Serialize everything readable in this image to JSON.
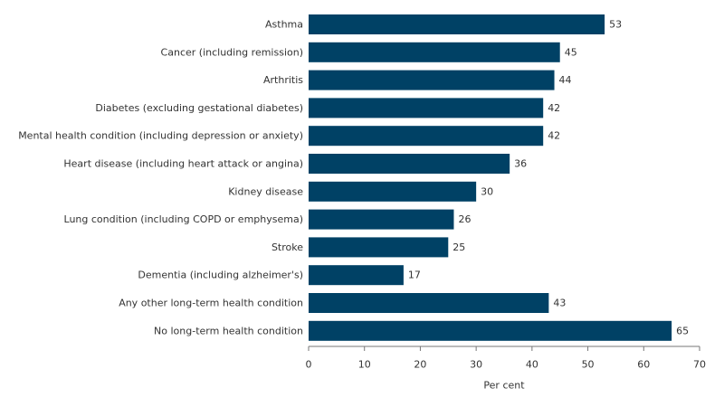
{
  "chart_data": {
    "type": "bar",
    "orientation": "horizontal",
    "title": "",
    "xlabel": "Per cent",
    "ylabel": "",
    "categories": [
      "Asthma",
      "Cancer (including remission)",
      "Arthritis",
      "Diabetes (excluding gestational diabetes)",
      "Mental health condition (including depression or anxiety)",
      "Heart disease (including heart attack or angina)",
      "Kidney disease",
      "Lung condition (including COPD or emphysema)",
      "Stroke",
      "Dementia (including alzheimer's)",
      "Any other long-term health condition",
      "No long-term health condition"
    ],
    "values": [
      53,
      45,
      44,
      42,
      42,
      36,
      30,
      26,
      25,
      17,
      43,
      65
    ],
    "xlim": [
      0,
      70
    ],
    "xticks": [
      0,
      10,
      20,
      30,
      40,
      50,
      60,
      70
    ],
    "grid": false,
    "legend": "none",
    "bar_color": "#004165",
    "text_color": "#333333",
    "axis_color": "#777777"
  }
}
